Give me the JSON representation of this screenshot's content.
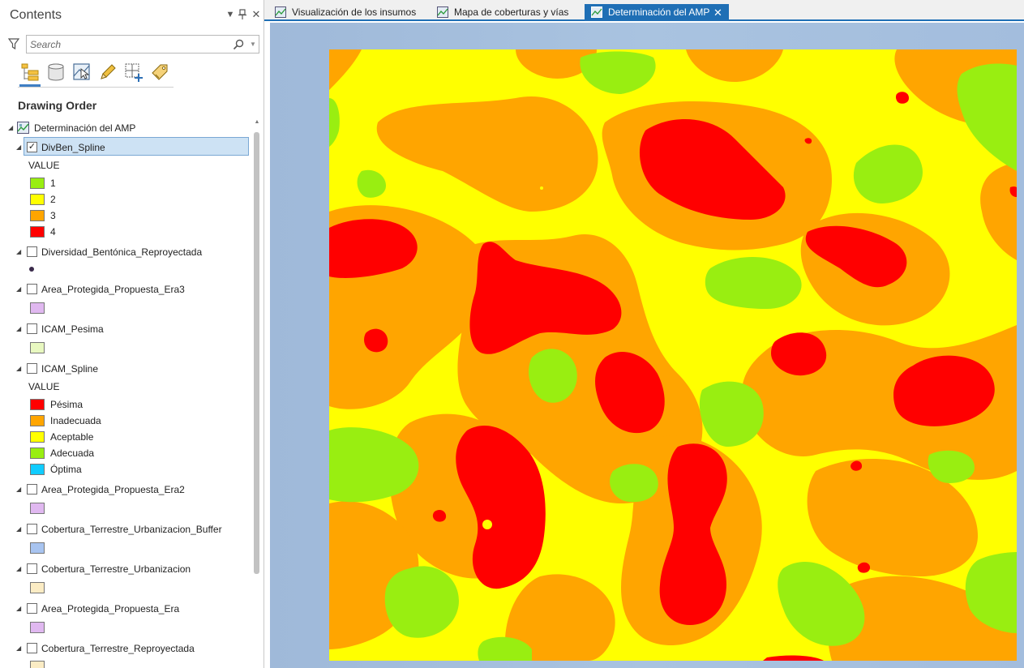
{
  "contents_pane": {
    "title": "Contents",
    "search_placeholder": "Search",
    "section_title": "Drawing Order",
    "map_name": "Determinación del AMP",
    "icons": {
      "options": "chevron-down-icon",
      "pin": "pin-icon",
      "close": "close-icon",
      "filter": "filter-icon",
      "search": "search-icon"
    },
    "toolbar": [
      "list-by-drawing-order",
      "list-by-data-source",
      "list-by-selection",
      "list-by-editing",
      "list-by-snapping",
      "list-by-labeling"
    ],
    "value_header": "VALUE",
    "layers": [
      {
        "name": "DivBen_Spline",
        "checked": true,
        "selected": true,
        "legend": [
          {
            "label": "1",
            "color": "#99ee11"
          },
          {
            "label": "2",
            "color": "#ffff00"
          },
          {
            "label": "3",
            "color": "#ffa500"
          },
          {
            "label": "4",
            "color": "#ff0000"
          }
        ]
      },
      {
        "name": "Diversidad_Bentónica_Reproyectada",
        "checked": false,
        "symbol": "point",
        "color": "#3a2a4a"
      },
      {
        "name": "Area_Protegida_Propuesta_Era3",
        "checked": false,
        "color": "#e0b8f0"
      },
      {
        "name": "ICAM_Pesima",
        "checked": false,
        "color": "#e8f8c0"
      },
      {
        "name": "ICAM_Spline",
        "checked": false,
        "legend": [
          {
            "label": "Pésima",
            "color": "#ff0000"
          },
          {
            "label": "Inadecuada",
            "color": "#ffa500"
          },
          {
            "label": "Aceptable",
            "color": "#ffff00"
          },
          {
            "label": "Adecuada",
            "color": "#99ee11"
          },
          {
            "label": "Óptima",
            "color": "#11ccff"
          }
        ]
      },
      {
        "name": "Area_Protegida_Propuesta_Era2",
        "checked": false,
        "color": "#e0b8f0"
      },
      {
        "name": "Cobertura_Terrestre_Urbanizacion_Buffer",
        "checked": false,
        "color": "#a8c4f0"
      },
      {
        "name": "Cobertura_Terrestre_Urbanizacion",
        "checked": false,
        "color": "#fbecc4"
      },
      {
        "name": "Area_Protegida_Propuesta_Era",
        "checked": false,
        "color": "#e0b8f0"
      },
      {
        "name": "Cobertura_Terrestre_Reproyectada",
        "checked": false,
        "color": "#fbecc4"
      }
    ]
  },
  "tabs": [
    {
      "label": "Visualización de los insumos",
      "active": false
    },
    {
      "label": "Mapa de coberturas y vías",
      "active": false
    },
    {
      "label": "Determinación del AMP",
      "active": true,
      "close": "✕"
    }
  ],
  "colors": {
    "accent": "#1f6fb5",
    "selection": "#cde2f4",
    "class_1": "#99ee11",
    "class_2": "#ffff00",
    "class_3": "#ffa500",
    "class_4": "#ff0000"
  }
}
